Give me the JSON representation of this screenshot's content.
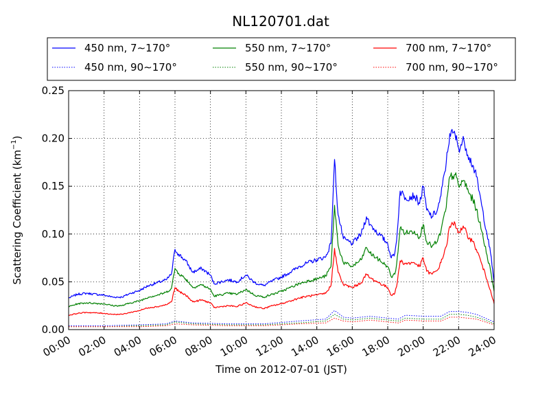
{
  "chart_data": {
    "type": "line",
    "title": "NL120701.dat",
    "xlabel": "Time on 2012-07-01 (JST)",
    "ylabel": "Scattering Coefficient (km",
    "ylabel_sup": "−1",
    "ylabel_tail": ")",
    "x_ticks": [
      "00:00",
      "02:00",
      "04:00",
      "06:00",
      "08:00",
      "10:00",
      "12:00",
      "14:00",
      "16:00",
      "18:00",
      "20:00",
      "22:00",
      "24:00"
    ],
    "y_ticks": [
      "0.00",
      "0.05",
      "0.10",
      "0.15",
      "0.20",
      "0.25"
    ],
    "xlim_hours": [
      0,
      24
    ],
    "ylim": [
      0,
      0.25
    ],
    "grid": true,
    "legend_position": "top",
    "series": [
      {
        "name": "450 nm, 7∼170°",
        "color": "#0000ff",
        "style": "solid",
        "points": [
          [
            0,
            0.033
          ],
          [
            0.5,
            0.037
          ],
          [
            1,
            0.038
          ],
          [
            2,
            0.036
          ],
          [
            2.5,
            0.034
          ],
          [
            3,
            0.034
          ],
          [
            3.5,
            0.038
          ],
          [
            4,
            0.041
          ],
          [
            4.5,
            0.046
          ],
          [
            5,
            0.049
          ],
          [
            5.5,
            0.052
          ],
          [
            5.8,
            0.058
          ],
          [
            6.0,
            0.084
          ],
          [
            6.2,
            0.079
          ],
          [
            6.6,
            0.072
          ],
          [
            6.8,
            0.066
          ],
          [
            7,
            0.06
          ],
          [
            7.5,
            0.064
          ],
          [
            8,
            0.057
          ],
          [
            8.2,
            0.048
          ],
          [
            9,
            0.052
          ],
          [
            9.5,
            0.05
          ],
          [
            10,
            0.057
          ],
          [
            10.5,
            0.049
          ],
          [
            11,
            0.046
          ],
          [
            11.5,
            0.051
          ],
          [
            12,
            0.055
          ],
          [
            12.5,
            0.06
          ],
          [
            13,
            0.066
          ],
          [
            13.5,
            0.07
          ],
          [
            14,
            0.073
          ],
          [
            14.5,
            0.076
          ],
          [
            14.8,
            0.09
          ],
          [
            15.0,
            0.178
          ],
          [
            15.2,
            0.12
          ],
          [
            15.5,
            0.095
          ],
          [
            16,
            0.09
          ],
          [
            16.5,
            0.1
          ],
          [
            16.8,
            0.118
          ],
          [
            17,
            0.11
          ],
          [
            17.5,
            0.1
          ],
          [
            18,
            0.09
          ],
          [
            18.2,
            0.075
          ],
          [
            18.4,
            0.08
          ],
          [
            18.5,
            0.093
          ],
          [
            18.7,
            0.145
          ],
          [
            19,
            0.138
          ],
          [
            19.5,
            0.14
          ],
          [
            19.8,
            0.132
          ],
          [
            20,
            0.15
          ],
          [
            20.2,
            0.125
          ],
          [
            20.5,
            0.118
          ],
          [
            20.8,
            0.125
          ],
          [
            21,
            0.14
          ],
          [
            21.3,
            0.175
          ],
          [
            21.5,
            0.205
          ],
          [
            21.8,
            0.204
          ],
          [
            22,
            0.19
          ],
          [
            22.3,
            0.198
          ],
          [
            22.6,
            0.18
          ],
          [
            22.8,
            0.172
          ],
          [
            23,
            0.16
          ],
          [
            23.3,
            0.13
          ],
          [
            23.6,
            0.1
          ],
          [
            23.8,
            0.08
          ],
          [
            24,
            0.05
          ]
        ]
      },
      {
        "name": "550 nm, 7∼170°",
        "color": "#008000",
        "style": "solid",
        "points": [
          [
            0,
            0.024
          ],
          [
            0.5,
            0.027
          ],
          [
            1,
            0.028
          ],
          [
            2,
            0.027
          ],
          [
            2.5,
            0.025
          ],
          [
            3,
            0.025
          ],
          [
            3.5,
            0.028
          ],
          [
            4,
            0.03
          ],
          [
            4.5,
            0.034
          ],
          [
            5,
            0.036
          ],
          [
            5.5,
            0.039
          ],
          [
            5.8,
            0.043
          ],
          [
            6.0,
            0.064
          ],
          [
            6.2,
            0.059
          ],
          [
            6.6,
            0.053
          ],
          [
            6.8,
            0.049
          ],
          [
            7,
            0.044
          ],
          [
            7.5,
            0.047
          ],
          [
            8,
            0.042
          ],
          [
            8.2,
            0.035
          ],
          [
            9,
            0.038
          ],
          [
            9.5,
            0.037
          ],
          [
            10,
            0.042
          ],
          [
            10.5,
            0.036
          ],
          [
            11,
            0.034
          ],
          [
            11.5,
            0.037
          ],
          [
            12,
            0.04
          ],
          [
            12.5,
            0.044
          ],
          [
            13,
            0.048
          ],
          [
            13.5,
            0.051
          ],
          [
            14,
            0.053
          ],
          [
            14.5,
            0.056
          ],
          [
            14.8,
            0.066
          ],
          [
            15.0,
            0.13
          ],
          [
            15.2,
            0.088
          ],
          [
            15.5,
            0.07
          ],
          [
            16,
            0.066
          ],
          [
            16.5,
            0.073
          ],
          [
            16.8,
            0.086
          ],
          [
            17,
            0.08
          ],
          [
            17.5,
            0.073
          ],
          [
            18,
            0.066
          ],
          [
            18.2,
            0.055
          ],
          [
            18.4,
            0.058
          ],
          [
            18.5,
            0.068
          ],
          [
            18.7,
            0.106
          ],
          [
            19,
            0.101
          ],
          [
            19.5,
            0.103
          ],
          [
            19.8,
            0.097
          ],
          [
            20,
            0.11
          ],
          [
            20.2,
            0.092
          ],
          [
            20.5,
            0.087
          ],
          [
            20.8,
            0.092
          ],
          [
            21,
            0.103
          ],
          [
            21.3,
            0.128
          ],
          [
            21.5,
            0.16
          ],
          [
            21.8,
            0.162
          ],
          [
            22,
            0.15
          ],
          [
            22.3,
            0.156
          ],
          [
            22.6,
            0.142
          ],
          [
            22.8,
            0.136
          ],
          [
            23,
            0.126
          ],
          [
            23.3,
            0.103
          ],
          [
            23.6,
            0.078
          ],
          [
            23.8,
            0.062
          ],
          [
            24,
            0.04
          ]
        ]
      },
      {
        "name": "700 nm, 7∼170°",
        "color": "#ff0000",
        "style": "solid",
        "points": [
          [
            0,
            0.015
          ],
          [
            0.5,
            0.017
          ],
          [
            1,
            0.018
          ],
          [
            2,
            0.017
          ],
          [
            2.5,
            0.016
          ],
          [
            3,
            0.016
          ],
          [
            3.5,
            0.018
          ],
          [
            4,
            0.02
          ],
          [
            4.5,
            0.023
          ],
          [
            5,
            0.024
          ],
          [
            5.5,
            0.026
          ],
          [
            5.8,
            0.029
          ],
          [
            6.0,
            0.044
          ],
          [
            6.2,
            0.04
          ],
          [
            6.6,
            0.036
          ],
          [
            6.8,
            0.033
          ],
          [
            7,
            0.029
          ],
          [
            7.5,
            0.031
          ],
          [
            8,
            0.028
          ],
          [
            8.2,
            0.023
          ],
          [
            9,
            0.025
          ],
          [
            9.5,
            0.024
          ],
          [
            10,
            0.028
          ],
          [
            10.5,
            0.024
          ],
          [
            11,
            0.022
          ],
          [
            11.5,
            0.025
          ],
          [
            12,
            0.027
          ],
          [
            12.5,
            0.03
          ],
          [
            13,
            0.033
          ],
          [
            13.5,
            0.035
          ],
          [
            14,
            0.036
          ],
          [
            14.5,
            0.038
          ],
          [
            14.8,
            0.046
          ],
          [
            15.0,
            0.085
          ],
          [
            15.2,
            0.06
          ],
          [
            15.5,
            0.047
          ],
          [
            16,
            0.044
          ],
          [
            16.5,
            0.049
          ],
          [
            16.8,
            0.058
          ],
          [
            17,
            0.054
          ],
          [
            17.5,
            0.049
          ],
          [
            18,
            0.044
          ],
          [
            18.2,
            0.036
          ],
          [
            18.4,
            0.038
          ],
          [
            18.5,
            0.045
          ],
          [
            18.7,
            0.072
          ],
          [
            19,
            0.069
          ],
          [
            19.5,
            0.07
          ],
          [
            19.8,
            0.066
          ],
          [
            20,
            0.075
          ],
          [
            20.2,
            0.061
          ],
          [
            20.5,
            0.058
          ],
          [
            20.8,
            0.062
          ],
          [
            21,
            0.07
          ],
          [
            21.3,
            0.087
          ],
          [
            21.5,
            0.108
          ],
          [
            21.8,
            0.111
          ],
          [
            22,
            0.102
          ],
          [
            22.3,
            0.106
          ],
          [
            22.6,
            0.096
          ],
          [
            22.8,
            0.092
          ],
          [
            23,
            0.084
          ],
          [
            23.3,
            0.069
          ],
          [
            23.6,
            0.052
          ],
          [
            23.8,
            0.041
          ],
          [
            24,
            0.027
          ]
        ]
      },
      {
        "name": "450 nm, 90∼170°",
        "color": "#0000ff",
        "style": "dotted",
        "points": [
          [
            0,
            0.004
          ],
          [
            2,
            0.004
          ],
          [
            4,
            0.005
          ],
          [
            5.5,
            0.006
          ],
          [
            6,
            0.009
          ],
          [
            7,
            0.007
          ],
          [
            9,
            0.006
          ],
          [
            11,
            0.006
          ],
          [
            13,
            0.009
          ],
          [
            14.5,
            0.011
          ],
          [
            15,
            0.02
          ],
          [
            15.5,
            0.013
          ],
          [
            16,
            0.012
          ],
          [
            17,
            0.014
          ],
          [
            18,
            0.012
          ],
          [
            18.6,
            0.011
          ],
          [
            19,
            0.015
          ],
          [
            20,
            0.014
          ],
          [
            21,
            0.014
          ],
          [
            21.5,
            0.019
          ],
          [
            22,
            0.019
          ],
          [
            22.5,
            0.018
          ],
          [
            23,
            0.016
          ],
          [
            23.5,
            0.012
          ],
          [
            24,
            0.008
          ]
        ]
      },
      {
        "name": "550 nm, 90∼170°",
        "color": "#008000",
        "style": "dotted",
        "points": [
          [
            0,
            0.003
          ],
          [
            2,
            0.003
          ],
          [
            4,
            0.004
          ],
          [
            5.5,
            0.005
          ],
          [
            6,
            0.008
          ],
          [
            7,
            0.006
          ],
          [
            9,
            0.005
          ],
          [
            11,
            0.005
          ],
          [
            13,
            0.007
          ],
          [
            14.5,
            0.009
          ],
          [
            15,
            0.016
          ],
          [
            15.5,
            0.011
          ],
          [
            16,
            0.01
          ],
          [
            17,
            0.012
          ],
          [
            18,
            0.01
          ],
          [
            18.6,
            0.009
          ],
          [
            19,
            0.012
          ],
          [
            20,
            0.011
          ],
          [
            21,
            0.011
          ],
          [
            21.5,
            0.016
          ],
          [
            22,
            0.016
          ],
          [
            22.5,
            0.015
          ],
          [
            23,
            0.013
          ],
          [
            23.5,
            0.01
          ],
          [
            24,
            0.006
          ]
        ]
      },
      {
        "name": "700 nm, 90∼170°",
        "color": "#ff0000",
        "style": "dotted",
        "points": [
          [
            0,
            0.003
          ],
          [
            2,
            0.003
          ],
          [
            4,
            0.003
          ],
          [
            5.5,
            0.004
          ],
          [
            6,
            0.006
          ],
          [
            7,
            0.005
          ],
          [
            9,
            0.004
          ],
          [
            11,
            0.004
          ],
          [
            13,
            0.006
          ],
          [
            14.5,
            0.007
          ],
          [
            15,
            0.012
          ],
          [
            15.5,
            0.009
          ],
          [
            16,
            0.008
          ],
          [
            17,
            0.01
          ],
          [
            18,
            0.008
          ],
          [
            18.6,
            0.007
          ],
          [
            19,
            0.01
          ],
          [
            20,
            0.009
          ],
          [
            21,
            0.009
          ],
          [
            21.5,
            0.013
          ],
          [
            22,
            0.013
          ],
          [
            22.5,
            0.012
          ],
          [
            23,
            0.011
          ],
          [
            23.5,
            0.008
          ],
          [
            24,
            0.005
          ]
        ]
      }
    ]
  }
}
